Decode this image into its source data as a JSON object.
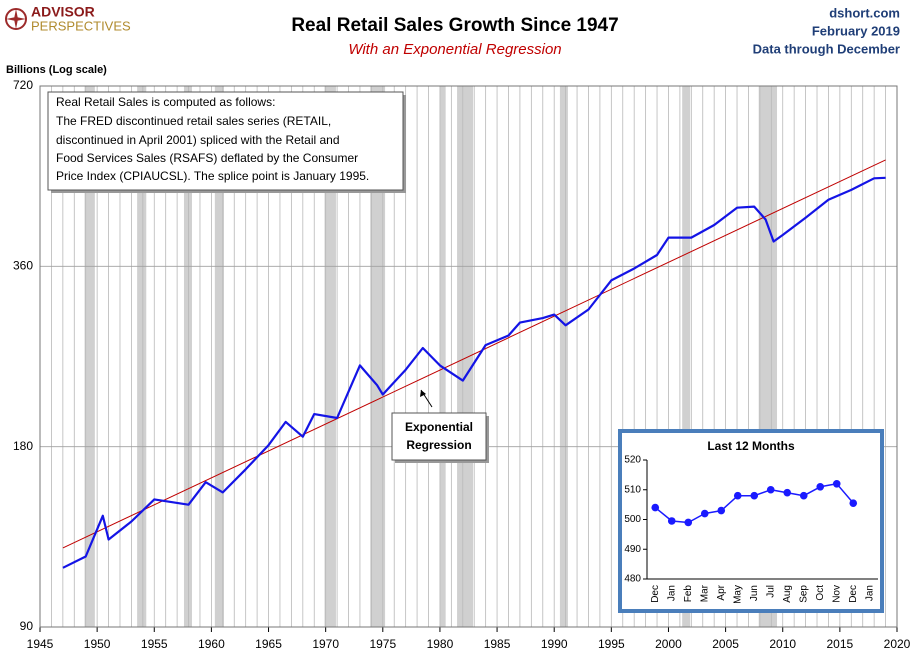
{
  "header": {
    "logo_top": "ADVISOR",
    "logo_bottom": "PERSPECTIVES",
    "source": "dshort.com",
    "date": "February 2019",
    "coverage": "Data through December"
  },
  "chart_data": [
    {
      "type": "line",
      "title": "Real Retail Sales Growth Since 1947",
      "subtitle": "With an Exponential Regression",
      "y_label": "Billions (Log scale)",
      "log_scale": true,
      "grid": true,
      "note": [
        "Real Retail Sales is computed as follows:",
        "The FRED discontinued retail sales series (RETAIL,",
        "discontinued in April 2001) spliced with the Retail and",
        "Food Services Sales (RSAFS) deflated by the Consumer",
        "Price Index (CPIAUCSL). The splice point is January 1995."
      ],
      "annotation": [
        "Exponential",
        "Regression"
      ],
      "xlim": [
        1945,
        2020
      ],
      "xticks": [
        1945,
        1950,
        1955,
        1960,
        1965,
        1970,
        1975,
        1980,
        1985,
        1990,
        1995,
        2000,
        2005,
        2010,
        2015,
        2020
      ],
      "minor_xticks": [
        1946,
        1947,
        1948,
        1949,
        1951,
        1952,
        1953,
        1954,
        1956,
        1957,
        1958,
        1959,
        1961,
        1962,
        1963,
        1964,
        1966,
        1967,
        1968,
        1969,
        1971,
        1972,
        1973,
        1974,
        1976,
        1977,
        1978,
        1979,
        1981,
        1982,
        1983,
        1984,
        1986,
        1987,
        1988,
        1989,
        1991,
        1992,
        1993,
        1994,
        1996,
        1997,
        1998,
        1999,
        2001,
        2002,
        2003,
        2004,
        2006,
        2007,
        2008,
        2009,
        2011,
        2012,
        2013,
        2014,
        2016,
        2017,
        2018,
        2019
      ],
      "ylim": [
        90,
        720
      ],
      "yticks": [
        90,
        180,
        360,
        720
      ],
      "shaded_ranges": [
        [
          1948.9,
          1949.8
        ],
        [
          1953.5,
          1954.3
        ],
        [
          1957.6,
          1958.3
        ],
        [
          1960.3,
          1961.1
        ],
        [
          1969.9,
          1970.9
        ],
        [
          1973.9,
          1975.2
        ],
        [
          1980.0,
          1980.5
        ],
        [
          1981.5,
          1982.9
        ],
        [
          1990.5,
          1991.2
        ],
        [
          2001.2,
          2001.9
        ],
        [
          2007.9,
          2009.5
        ]
      ],
      "shade_color": "#d0d0d0",
      "x": [
        1947,
        1949,
        1950.5,
        1951,
        1953,
        1955,
        1958,
        1959.5,
        1961,
        1963,
        1965,
        1966.5,
        1968,
        1969,
        1971,
        1973,
        1974.5,
        1975,
        1977,
        1978.5,
        1980,
        1982,
        1984,
        1986,
        1987,
        1989,
        1990,
        1991,
        1993,
        1995,
        1997,
        1999,
        2000,
        2002,
        2004,
        2006,
        2007.5,
        2008.5,
        2009.2,
        2010,
        2012,
        2014,
        2016,
        2018,
        2019
      ],
      "series": [
        {
          "color": "#1414e6",
          "values": [
            113,
            118,
            138,
            126,
            135,
            147,
            144,
            157,
            151,
            165,
            181,
            198,
            187,
            204,
            201,
            246,
            228,
            220,
            242,
            263,
            246,
            232,
            266,
            276,
            290,
            295,
            299,
            287,
            305,
            341,
            357,
            376,
            402,
            402,
            422,
            451,
            453,
            431,
            396,
            406,
            434,
            465,
            483,
            505,
            506
          ]
        }
      ],
      "regression": {
        "color": "#c00000",
        "x": [
          1947,
          2019
        ],
        "values": [
          122,
          542
        ]
      }
    },
    {
      "type": "line",
      "title": "Last 12 Months",
      "categories": [
        "Dec",
        "Jan",
        "Feb",
        "Mar",
        "Apr",
        "May",
        "Jun",
        "Jul",
        "Aug",
        "Sep",
        "Oct",
        "Nov",
        "Dec",
        "Jan"
      ],
      "ylim": [
        480,
        520
      ],
      "yticks": [
        480,
        490,
        500,
        510,
        520
      ],
      "series": [
        {
          "color": "#1a1aff",
          "values": [
            504,
            499.5,
            499,
            502,
            503,
            508,
            508,
            510,
            509,
            508,
            511,
            512,
            505.5,
            null
          ]
        }
      ]
    }
  ]
}
